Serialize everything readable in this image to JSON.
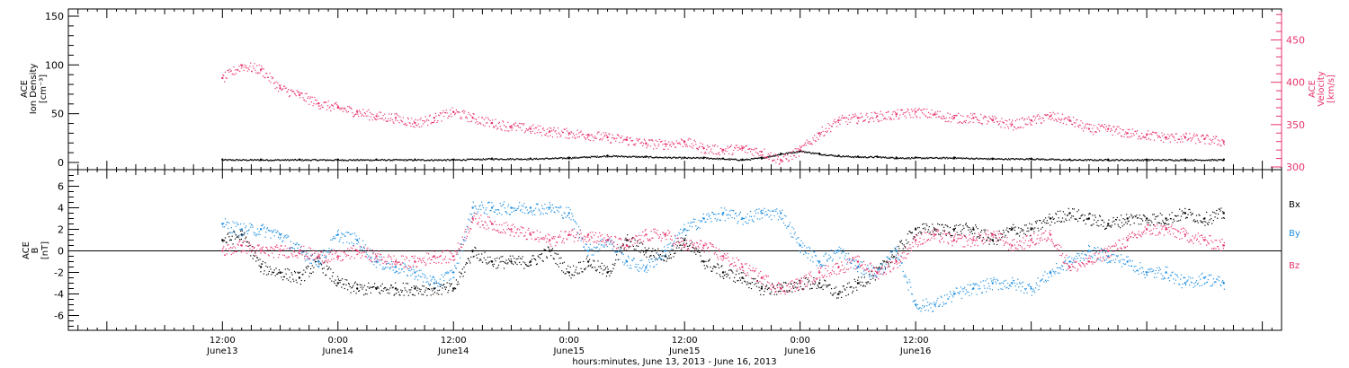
{
  "colors": {
    "black": "#000000",
    "pink": "#e8336b",
    "blue": "#1f8fe0"
  },
  "chart_data": [
    {
      "type": "scatter",
      "panel": "top",
      "ylabel_lines": [
        "ACE",
        "Ion Density",
        "[cm⁻³]"
      ],
      "y2label_lines": [
        "ACE",
        "Velocity",
        "[km/s]"
      ],
      "ylim": [
        0,
        150
      ],
      "y2lim": [
        300,
        480
      ],
      "yticks": [
        0,
        50,
        100,
        150
      ],
      "y2ticks": [
        300,
        350,
        400,
        450
      ],
      "series": [
        {
          "key": "density",
          "color": "#000000",
          "x": [
            0,
            4,
            8,
            12,
            16,
            20,
            24,
            28,
            32,
            36,
            40,
            44,
            48,
            50,
            52,
            54,
            56,
            58,
            60,
            62,
            64,
            66,
            68,
            70,
            72,
            76,
            80,
            84,
            88,
            92,
            96,
            100,
            104
          ],
          "values": [
            3,
            3,
            3,
            3,
            3,
            3,
            3,
            4,
            4,
            5,
            7,
            6,
            5,
            5,
            4,
            3,
            5,
            9,
            12,
            9,
            7,
            6,
            6,
            5,
            5,
            5,
            4,
            4,
            3,
            3,
            3,
            3,
            3
          ]
        },
        {
          "key": "velocity",
          "color": "#e8336b",
          "x": [
            0,
            2,
            4,
            6,
            8,
            10,
            12,
            14,
            16,
            18,
            20,
            22,
            24,
            26,
            28,
            30,
            32,
            34,
            36,
            38,
            40,
            42,
            44,
            46,
            48,
            50,
            52,
            54,
            56,
            58,
            60,
            62,
            64,
            66,
            68,
            70,
            72,
            74,
            76,
            78,
            80,
            82,
            84,
            86,
            88,
            90,
            92,
            94,
            96,
            98,
            100,
            102,
            104
          ],
          "values": [
            405,
            420,
            415,
            393,
            385,
            375,
            370,
            365,
            360,
            358,
            352,
            358,
            365,
            358,
            352,
            348,
            345,
            342,
            340,
            338,
            335,
            332,
            328,
            327,
            330,
            322,
            320,
            322,
            318,
            308,
            320,
            340,
            355,
            358,
            360,
            362,
            365,
            362,
            358,
            358,
            355,
            350,
            355,
            360,
            355,
            345,
            345,
            340,
            338,
            335,
            335,
            333,
            330
          ]
        }
      ]
    },
    {
      "type": "scatter",
      "panel": "bottom",
      "ylabel_lines": [
        "ACE",
        "B",
        "[nT]"
      ],
      "ylim": [
        -8,
        8
      ],
      "yticks": [
        -6,
        -4,
        -2,
        0,
        2,
        4,
        6
      ],
      "legend": [
        "Bx",
        "By",
        "Bz"
      ],
      "series": [
        {
          "key": "bx",
          "name": "Bx",
          "color": "#000000",
          "x": [
            0,
            2,
            4,
            6,
            8,
            10,
            12,
            14,
            16,
            18,
            20,
            22,
            24,
            26,
            28,
            30,
            32,
            34,
            36,
            38,
            40,
            42,
            44,
            46,
            48,
            50,
            52,
            54,
            56,
            58,
            60,
            62,
            64,
            66,
            68,
            70,
            72,
            74,
            76,
            78,
            80,
            82,
            84,
            86,
            88,
            90,
            92,
            94,
            96,
            98,
            100,
            102,
            104
          ],
          "values": [
            1,
            1.5,
            -1.5,
            -2,
            -2.5,
            -1,
            -3,
            -3.5,
            -3.5,
            -3.5,
            -3.5,
            -3.5,
            -3.5,
            0,
            -1,
            -1,
            -1,
            0,
            -2,
            -1,
            -2,
            1,
            0,
            -0.5,
            1,
            -1,
            -2,
            -2.5,
            -3.5,
            -3.5,
            -3,
            -3,
            -4,
            -3,
            -2,
            0,
            2,
            2,
            2,
            2,
            1,
            2,
            2,
            3,
            3.5,
            3,
            2.5,
            3,
            3,
            3,
            3.5,
            3,
            3.5
          ]
        },
        {
          "key": "by",
          "name": "By",
          "color": "#1f8fe0",
          "x": [
            0,
            2,
            4,
            6,
            8,
            10,
            12,
            14,
            16,
            18,
            20,
            22,
            24,
            26,
            28,
            30,
            32,
            34,
            36,
            38,
            40,
            42,
            44,
            46,
            48,
            50,
            52,
            54,
            56,
            58,
            60,
            62,
            64,
            66,
            68,
            70,
            72,
            74,
            76,
            78,
            80,
            82,
            84,
            86,
            88,
            90,
            92,
            94,
            96,
            98,
            100,
            102,
            104
          ],
          "values": [
            2.5,
            2,
            2,
            1.5,
            0,
            -1,
            1.5,
            1,
            -1,
            -1.5,
            -2,
            -3,
            -2,
            4,
            4,
            4,
            4,
            4,
            3.5,
            0,
            1,
            -1,
            -1.5,
            0,
            2,
            3,
            3.5,
            3,
            3.5,
            3.5,
            0.5,
            -1,
            0,
            -1.5,
            -2,
            0,
            -5,
            -5,
            -4,
            -3.5,
            -3,
            -3,
            -3.5,
            -2,
            -1,
            0,
            -0.5,
            -1,
            -2,
            -2,
            -3,
            -2.5,
            -3
          ]
        },
        {
          "key": "bz",
          "name": "Bz",
          "color": "#e8336b",
          "x": [
            0,
            2,
            4,
            6,
            8,
            10,
            12,
            14,
            16,
            18,
            20,
            22,
            24,
            26,
            28,
            30,
            32,
            34,
            36,
            38,
            40,
            42,
            44,
            46,
            48,
            50,
            52,
            54,
            56,
            58,
            60,
            62,
            64,
            66,
            68,
            70,
            72,
            74,
            76,
            78,
            80,
            82,
            84,
            86,
            88,
            90,
            92,
            94,
            96,
            98,
            100,
            102,
            104
          ],
          "values": [
            0,
            0.5,
            0,
            0,
            0,
            -0.5,
            -0.5,
            0,
            -0.5,
            -1,
            -1,
            -0.5,
            -0.5,
            3,
            2.5,
            2,
            1.5,
            1,
            1.5,
            1.5,
            1,
            0.5,
            1.5,
            1.5,
            0.5,
            0.5,
            -0.5,
            -1.5,
            -2.5,
            -3.5,
            -3,
            -2,
            -1.5,
            -1,
            -2,
            -1,
            1,
            1.5,
            1,
            1,
            1.5,
            0.5,
            1,
            1.5,
            -1.5,
            -1,
            0,
            1,
            2,
            2,
            1.5,
            1,
            0.5
          ]
        }
      ]
    }
  ],
  "x_axis": {
    "range_hours": [
      -16,
      110
    ],
    "major_ticks": [
      {
        "h": 0,
        "time": "12:00",
        "date": "June13"
      },
      {
        "h": 12,
        "time": "0:00",
        "date": "June14"
      },
      {
        "h": 24,
        "time": "12:00",
        "date": "June14"
      },
      {
        "h": 36,
        "time": "0:00",
        "date": "June15"
      },
      {
        "h": 48,
        "time": "12:00",
        "date": "June15"
      },
      {
        "h": 60,
        "time": "0:00",
        "date": "June16"
      },
      {
        "h": 72,
        "time": "12:00",
        "date": "June16"
      }
    ],
    "title": "hours:minutes, June 13, 2013 - June 16, 2013"
  }
}
